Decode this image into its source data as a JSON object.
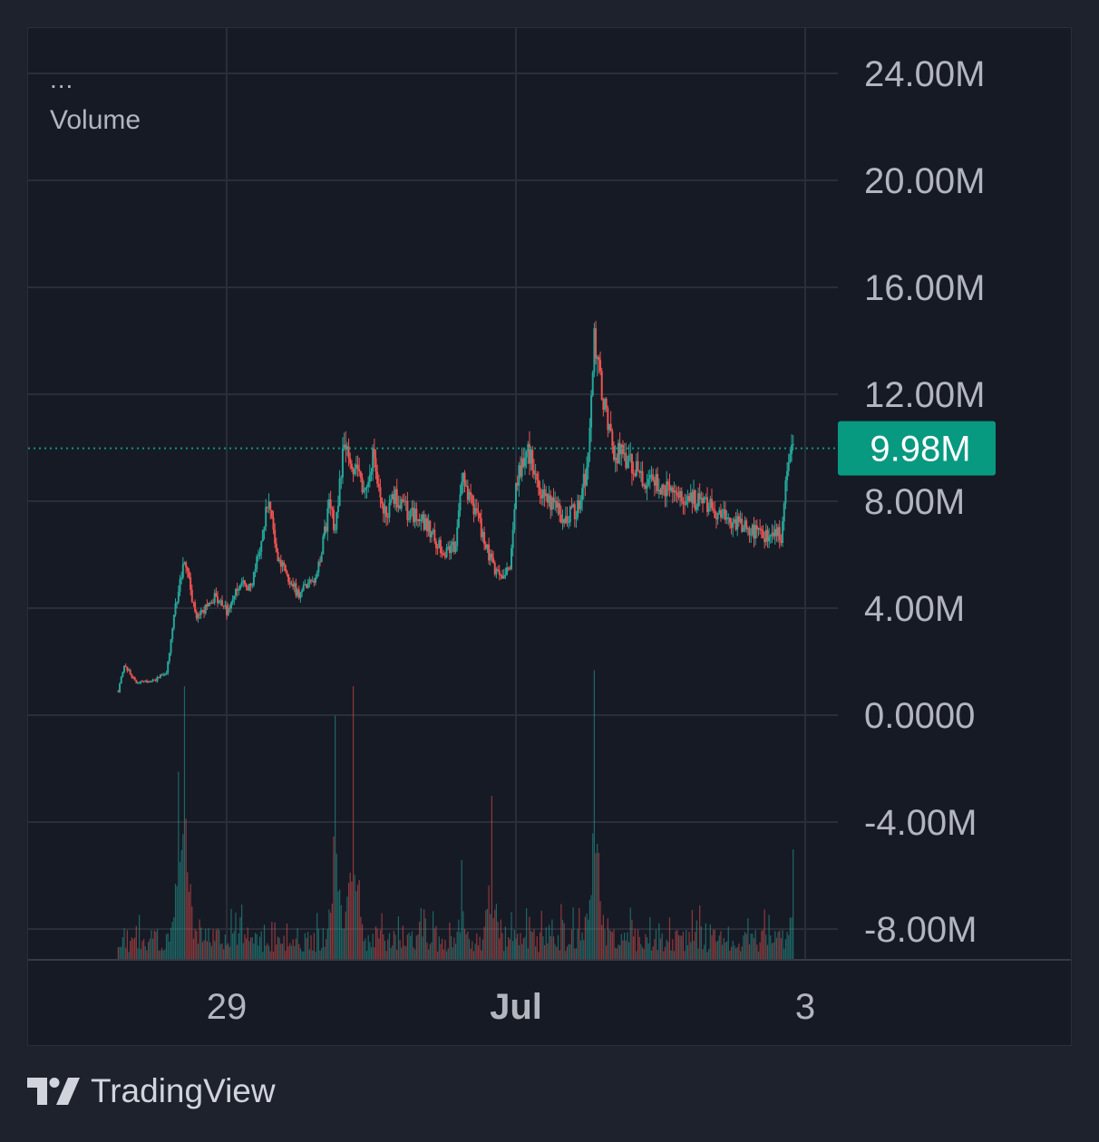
{
  "chart_data": {
    "type": "candlestick",
    "legend": {
      "collapsed_indicator": "...",
      "series_name": "Volume"
    },
    "y_axis": {
      "ticks": [
        24000000,
        20000000,
        16000000,
        12000000,
        8000000,
        4000000,
        0,
        -4000000,
        -8000000
      ],
      "tick_labels": [
        "24.00M",
        "20.00M",
        "16.00M",
        "12.00M",
        "8.00M",
        "4.00M",
        "0.0000",
        "-4.00M",
        "-8.00M"
      ],
      "range": [
        -9000000,
        25000000
      ]
    },
    "x_axis": {
      "ticks": [
        "29",
        "Jul",
        "3"
      ],
      "bold_ticks": [
        "Jul"
      ],
      "range_days": [
        "Jun 28 ~00:00",
        "Jul 3 ~13:00"
      ]
    },
    "last_value": {
      "label": "9.98M",
      "value": 9980000
    },
    "price_path": [
      [
        "Jun 28 06:00",
        900000
      ],
      [
        "Jun 28 07:00",
        1900000
      ],
      [
        "Jun 28 09:00",
        1200000
      ],
      [
        "Jun 28 12:00",
        1300000
      ],
      [
        "Jun 28 14:00",
        1600000
      ],
      [
        "Jun 28 16:00",
        4800000
      ],
      [
        "Jun 28 17:00",
        5800000
      ],
      [
        "Jun 28 19:00",
        3600000
      ],
      [
        "Jun 28 22:00",
        4400000
      ],
      [
        "Jun 29 00:00",
        3900000
      ],
      [
        "Jun 29 02:00",
        4900000
      ],
      [
        "Jun 29 04:00",
        4700000
      ],
      [
        "Jun 29 06:00",
        6800000
      ],
      [
        "Jun 29 07:00",
        8200000
      ],
      [
        "Jun 29 08:00",
        6300000
      ],
      [
        "Jun 29 10:00",
        5100000
      ],
      [
        "Jun 29 12:00",
        4500000
      ],
      [
        "Jun 29 15:00",
        5200000
      ],
      [
        "Jun 29 17:00",
        7800000
      ],
      [
        "Jun 29 18:00",
        7000000
      ],
      [
        "Jun 29 19:30",
        10200000
      ],
      [
        "Jun 29 21:00",
        9400000
      ],
      [
        "Jun 29 23:00",
        8400000
      ],
      [
        "Jun 30 00:30",
        9800000
      ],
      [
        "Jun 30 02:00",
        7400000
      ],
      [
        "Jun 30 04:00",
        8100000
      ],
      [
        "Jun 30 06:00",
        7600000
      ],
      [
        "Jun 30 09:00",
        7200000
      ],
      [
        "Jun 30 12:00",
        6000000
      ],
      [
        "Jun 30 14:00",
        6400000
      ],
      [
        "Jun 30 15:00",
        9000000
      ],
      [
        "Jun 30 17:00",
        7800000
      ],
      [
        "Jun 30 19:00",
        6300000
      ],
      [
        "Jun 30 21:00",
        5200000
      ],
      [
        "Jun 30 23:00",
        5600000
      ],
      [
        "Jul 1 00:00",
        8800000
      ],
      [
        "Jul 1 02:00",
        10000000
      ],
      [
        "Jul 1 04:00",
        8400000
      ],
      [
        "Jul 1 06:00",
        7800000
      ],
      [
        "Jul 1 08:00",
        7400000
      ],
      [
        "Jul 1 10:00",
        7600000
      ],
      [
        "Jul 1 11:00",
        8400000
      ],
      [
        "Jul 1 12:00",
        9500000
      ],
      [
        "Jul 1 13:00",
        14200000
      ],
      [
        "Jul 1 14:00",
        12400000
      ],
      [
        "Jul 1 16:00",
        10000000
      ],
      [
        "Jul 1 18:00",
        9600000
      ],
      [
        "Jul 1 20:00",
        9200000
      ],
      [
        "Jul 1 22:00",
        8700000
      ],
      [
        "Jul 2 00:00",
        8600000
      ],
      [
        "Jul 2 03:00",
        8300000
      ],
      [
        "Jul 2 06:00",
        8000000
      ],
      [
        "Jul 2 09:00",
        7700000
      ],
      [
        "Jul 2 12:00",
        7200000
      ],
      [
        "Jul 2 15:00",
        6900000
      ],
      [
        "Jul 2 18:00",
        6600000
      ],
      [
        "Jul 2 19:00",
        7100000
      ],
      [
        "Jul 2 20:00",
        6700000
      ],
      [
        "Jul 2 21:00",
        9000000
      ],
      [
        "Jul 2 22:00",
        9980000
      ]
    ],
    "volume_spikes": [
      [
        "Jun 29 21:00",
        10200000
      ],
      [
        "Jun 28 17:00",
        10200000
      ],
      [
        "Jun 29 18:00",
        9100000
      ],
      [
        "Jul 1 13:00",
        10800000
      ],
      [
        "Jun 30 20:00",
        6100000
      ],
      [
        "Jun 28 16:00",
        7000000
      ],
      [
        "Jul 2 22:00",
        4100000
      ],
      [
        "Jun 30 15:00",
        3700000
      ]
    ],
    "colors": {
      "up": "#26a69a",
      "down": "#ef5350",
      "grid": "#2a2e39",
      "axis_text": "#b2b5be",
      "last_label_bg": "#089981"
    }
  },
  "branding": {
    "name": "TradingView"
  }
}
